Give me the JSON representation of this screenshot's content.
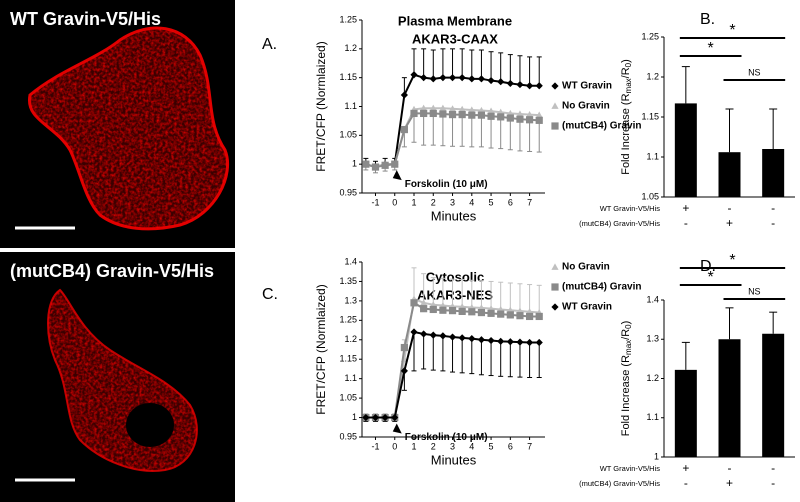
{
  "images": [
    {
      "label": "WT Gravin-V5/His"
    },
    {
      "label": "(mutCB4) Gravin-V5/His"
    }
  ],
  "chart_data": [
    {
      "type": "line",
      "panel": "A.",
      "title": "Plasma Membrane",
      "subtitle": "AKAR3-CAAX",
      "ylabel": "FRET/CFP (Normlaized)",
      "xlabel": "Minutes",
      "annotation": {
        "text": "Forskolin (10 μM)",
        "x": 0
      },
      "x": [
        -1.5,
        -1,
        -0.5,
        0,
        0.5,
        1,
        1.5,
        2,
        2.5,
        3,
        3.5,
        4,
        4.5,
        5,
        5.5,
        6,
        6.5,
        7,
        7.5
      ],
      "xlim": [
        -1.7,
        7.8
      ],
      "xticks": [
        -1,
        0,
        1,
        2,
        3,
        4,
        5,
        6,
        7
      ],
      "ylim": [
        0.95,
        1.25
      ],
      "yticks": [
        0.95,
        1,
        1.05,
        1.1,
        1.15,
        1.2,
        1.25
      ],
      "series": [
        {
          "name": "WT Gravin",
          "color": "#000000",
          "marker": "diamond",
          "error_direction": "up",
          "values": [
            1.0,
            0.995,
            1.0,
            1.0,
            1.12,
            1.155,
            1.15,
            1.148,
            1.15,
            1.15,
            1.15,
            1.148,
            1.148,
            1.145,
            1.143,
            1.14,
            1.138,
            1.136,
            1.136
          ],
          "errors": [
            0.01,
            0.01,
            0.01,
            0.01,
            0.03,
            0.045,
            0.05,
            0.05,
            0.05,
            0.05,
            0.05,
            0.05,
            0.05,
            0.05,
            0.05,
            0.05,
            0.05,
            0.05,
            0.05
          ]
        },
        {
          "name": "No Gravin",
          "color": "#c0c0c0",
          "marker": "triangle",
          "values": [
            1.0,
            0.995,
            1.0,
            1.0,
            1.06,
            1.095,
            1.097,
            1.097,
            1.097,
            1.096,
            1.095,
            1.094,
            1.093,
            1.092,
            1.09,
            1.088,
            1.087,
            1.086,
            1.085
          ]
        },
        {
          "name": "(mutCB4) Gravin",
          "color": "#8a8a8a",
          "marker": "square",
          "error_direction": "down",
          "values": [
            1.0,
            0.995,
            0.998,
            1.0,
            1.06,
            1.088,
            1.088,
            1.088,
            1.087,
            1.086,
            1.086,
            1.085,
            1.085,
            1.083,
            1.082,
            1.08,
            1.078,
            1.077,
            1.076
          ],
          "errors": [
            0.01,
            0.01,
            0.01,
            0.01,
            0.03,
            0.05,
            0.055,
            0.055,
            0.055,
            0.055,
            0.055,
            0.055,
            0.055,
            0.055,
            0.055,
            0.055,
            0.055,
            0.055,
            0.055
          ]
        }
      ]
    },
    {
      "type": "bar",
      "panel": "B.",
      "ylabel_parts": [
        "Fold Increase (R",
        "max",
        "/R",
        "0",
        ")"
      ],
      "color": "#000000",
      "values": [
        1.167,
        1.106,
        1.11
      ],
      "errors": [
        0.046,
        0.054,
        0.05
      ],
      "ylim": [
        1.05,
        1.25
      ],
      "yticks": [
        1.05,
        1.1,
        1.15,
        1.2,
        1.25
      ],
      "conditions": [
        {
          "name": "WT Gravin-V5/His",
          "signs": [
            "+",
            "-",
            "-"
          ]
        },
        {
          "name": "(mutCB4) Gravin-V5/His",
          "signs": [
            "-",
            "+",
            "-"
          ]
        }
      ],
      "significance": [
        "*",
        "*",
        "NS"
      ]
    },
    {
      "type": "line",
      "panel": "C.",
      "title": "Cytosolic",
      "subtitle": "AKAR3-NES",
      "ylabel": "FRET/CFP (Normlaized)",
      "xlabel": "Minutes",
      "annotation": {
        "text": "Forskolin (10 μM)",
        "x": 0
      },
      "x": [
        -1.5,
        -1,
        -0.5,
        0,
        0.5,
        1,
        1.5,
        2,
        2.5,
        3,
        3.5,
        4,
        4.5,
        5,
        5.5,
        6,
        6.5,
        7,
        7.5
      ],
      "xlim": [
        -1.7,
        7.8
      ],
      "xticks": [
        -1,
        0,
        1,
        2,
        3,
        4,
        5,
        6,
        7
      ],
      "ylim": [
        0.95,
        1.4
      ],
      "yticks": [
        0.95,
        1,
        1.05,
        1.1,
        1.15,
        1.2,
        1.25,
        1.3,
        1.35,
        1.4
      ],
      "series": [
        {
          "name": "No Gravin",
          "color": "#c0c0c0",
          "marker": "triangle",
          "error_direction": "up",
          "values": [
            1.0,
            1.0,
            1.0,
            1.0,
            1.15,
            1.305,
            1.295,
            1.29,
            1.288,
            1.286,
            1.285,
            1.283,
            1.282,
            1.28,
            1.278,
            1.276,
            1.274,
            1.272,
            1.27
          ],
          "errors": [
            0.01,
            0.01,
            0.01,
            0.01,
            0.05,
            0.08,
            0.075,
            0.07,
            0.07,
            0.07,
            0.07,
            0.07,
            0.07,
            0.07,
            0.07,
            0.07,
            0.07,
            0.07,
            0.07
          ]
        },
        {
          "name": "(mutCB4) Gravin",
          "color": "#8a8a8a",
          "marker": "square",
          "values": [
            1.0,
            1.0,
            1.0,
            1.0,
            1.18,
            1.295,
            1.28,
            1.278,
            1.276,
            1.275,
            1.273,
            1.272,
            1.27,
            1.268,
            1.266,
            1.264,
            1.262,
            1.26,
            1.26
          ]
        },
        {
          "name": "WT Gravin",
          "color": "#000000",
          "marker": "diamond",
          "error_direction": "down",
          "values": [
            1.0,
            1.0,
            1.0,
            1.0,
            1.12,
            1.22,
            1.215,
            1.212,
            1.21,
            1.207,
            1.205,
            1.203,
            1.2,
            1.198,
            1.196,
            1.195,
            1.194,
            1.193,
            1.193
          ],
          "errors": [
            0.01,
            0.01,
            0.01,
            0.01,
            0.05,
            0.1,
            0.09,
            0.09,
            0.09,
            0.09,
            0.09,
            0.09,
            0.09,
            0.09,
            0.09,
            0.09,
            0.09,
            0.09,
            0.09
          ]
        }
      ]
    },
    {
      "type": "bar",
      "panel": "D.",
      "ylabel_parts": [
        "Fold Increase (R",
        "max",
        "/R",
        "0",
        ")"
      ],
      "color": "#000000",
      "values": [
        1.222,
        1.3,
        1.314
      ],
      "errors": [
        0.07,
        0.08,
        0.055
      ],
      "ylim": [
        1,
        1.4
      ],
      "yticks": [
        1,
        1.1,
        1.2,
        1.3,
        1.4
      ],
      "conditions": [
        {
          "name": "WT Gravin-V5/His",
          "signs": [
            "+",
            "-",
            "-"
          ]
        },
        {
          "name": "(mutCB4) Gravin-V5/His",
          "signs": [
            "-",
            "+",
            "-"
          ]
        }
      ],
      "significance": [
        "*",
        "*",
        "NS"
      ]
    }
  ]
}
